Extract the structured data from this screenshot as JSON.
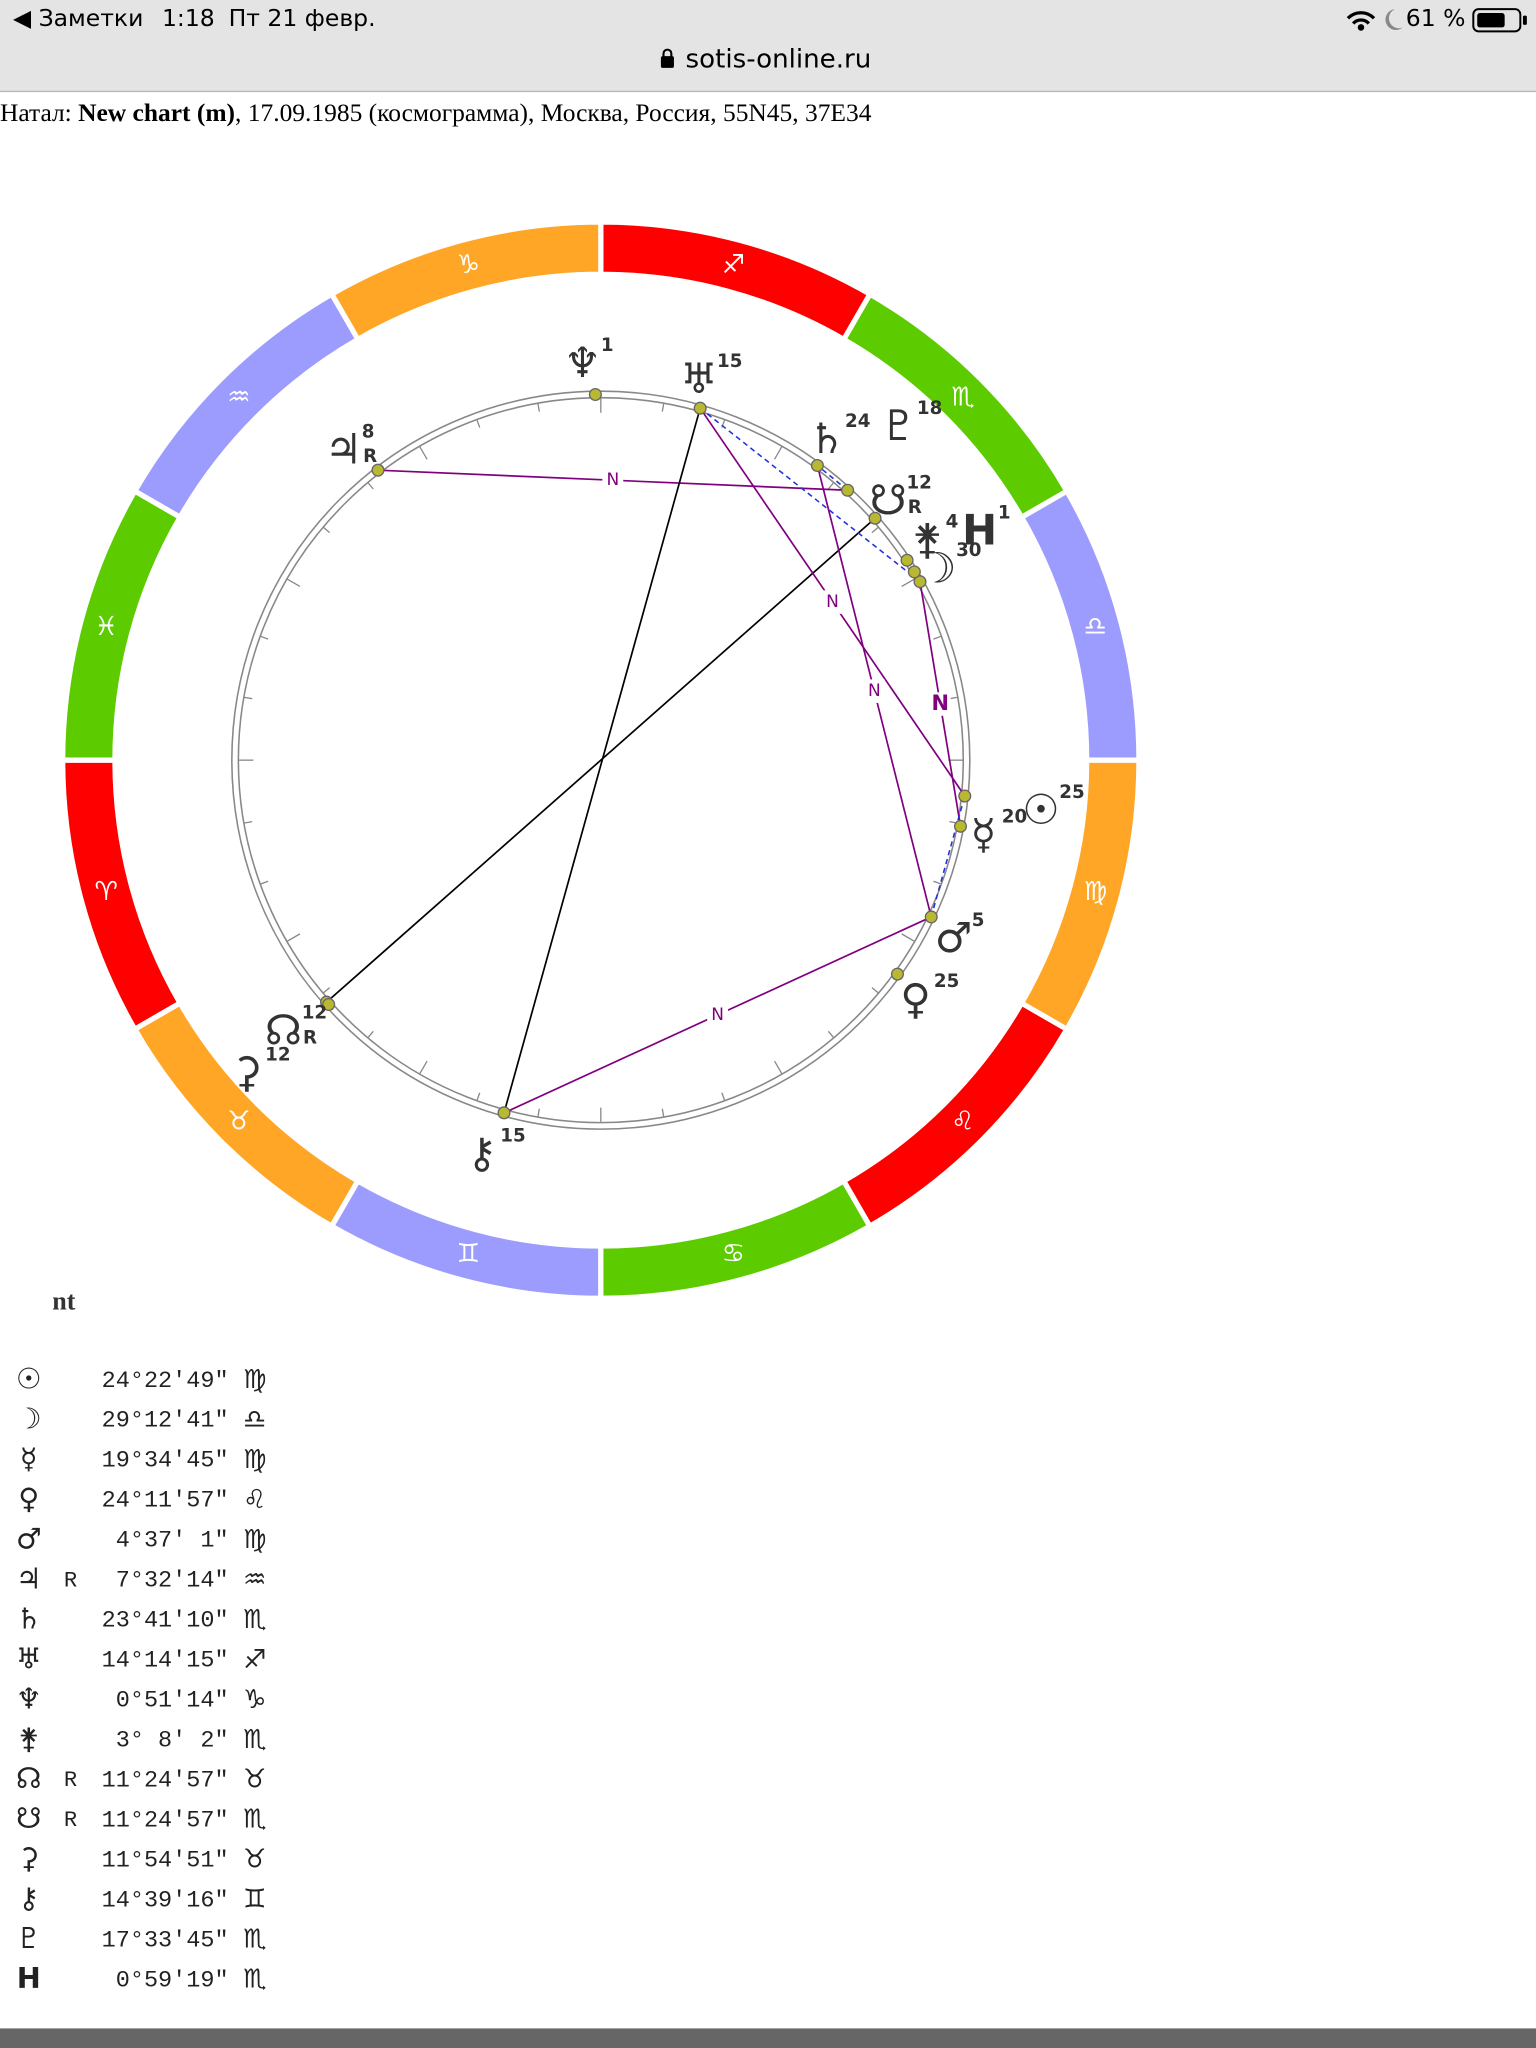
{
  "status_bar": {
    "back": "◀ Заметки",
    "time": "1:18",
    "date": "Пт 21 февр.",
    "battery": "61 %"
  },
  "address_bar": {
    "url": "sotis-online.ru"
  },
  "header": {
    "prefix": "Натал: ",
    "chart_name": "New chart (m)",
    "details": ", 17.09.1985 (космограмма), Москва, Россия, 55N45, 37E34"
  },
  "wheel": {
    "signs": [
      {
        "glyph": "♈",
        "color": "#ff0000"
      },
      {
        "glyph": "♉",
        "color": "#ffa626"
      },
      {
        "glyph": "♊",
        "color": "#9c9cff"
      },
      {
        "glyph": "♋",
        "color": "#5ccc00"
      },
      {
        "glyph": "♌",
        "color": "#ff0000"
      },
      {
        "glyph": "♍",
        "color": "#ffa626"
      },
      {
        "glyph": "♎",
        "color": "#9c9cff"
      },
      {
        "glyph": "♏",
        "color": "#5ccc00"
      },
      {
        "glyph": "♐",
        "color": "#ff0000"
      },
      {
        "glyph": "♑",
        "color": "#ffa626"
      },
      {
        "glyph": "♒",
        "color": "#9c9cff"
      },
      {
        "glyph": "♓",
        "color": "#5ccc00"
      }
    ],
    "degree_labels": [
      "25",
      "30",
      "20",
      "25",
      "5",
      "8",
      "24",
      "15",
      "1",
      "4",
      "12",
      "12",
      "12",
      "15",
      "18",
      "1"
    ],
    "aspect_labels": [
      "N",
      "N",
      "N",
      "N",
      "N"
    ]
  },
  "table": {
    "title": "nt",
    "rows": [
      [
        "☉",
        null,
        "24°22′49″",
        "♍"
      ],
      [
        "☽",
        null,
        "29°12′41″",
        "♎"
      ],
      [
        "☿",
        null,
        "19°34′45″",
        "♍"
      ],
      [
        "♀",
        null,
        "24°11′57″",
        "♌"
      ],
      [
        "♂",
        null,
        "4°37′ 1″",
        "♍"
      ],
      [
        "♃",
        "R",
        "7°32′14″",
        "♒"
      ],
      [
        "♄",
        null,
        "23°41′10″",
        "♏"
      ],
      [
        "♅",
        null,
        "14°14′15″",
        "♐"
      ],
      [
        "♆",
        null,
        "0°51′14″",
        "♑"
      ],
      [
        "⚵",
        null,
        "3° 8′ 2″",
        "♏"
      ],
      [
        "☊",
        "R",
        "11°24′57″",
        "♉"
      ],
      [
        "☋",
        "R",
        "11°24′57″",
        "♏"
      ],
      [
        "⚳",
        null,
        "11°54′51″",
        "♉"
      ],
      [
        "⚷",
        null,
        "14°39′16″",
        "♊"
      ],
      [
        "♇",
        null,
        "17°33′45″",
        "♏"
      ],
      [
        "H",
        null,
        "0°59′19″",
        "♏"
      ]
    ]
  }
}
